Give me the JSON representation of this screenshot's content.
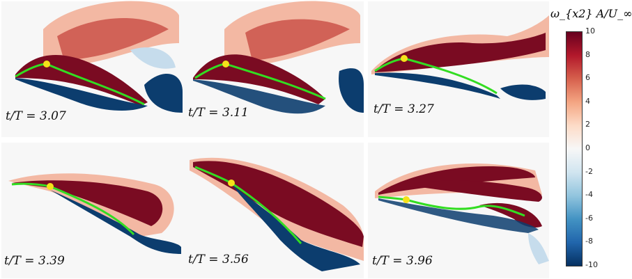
{
  "panels": [
    {
      "label": "t/T = 3.07"
    },
    {
      "label": "t/T = 3.11"
    },
    {
      "label": "t/T = 3.27"
    },
    {
      "label": "t/T = 3.39"
    },
    {
      "label": "t/T = 3.56"
    },
    {
      "label": "t/T = 3.96"
    }
  ],
  "colorbar": {
    "title": "ω_{x2} A/U_∞",
    "ticks": [
      "10",
      "8",
      "6",
      "4",
      "2",
      "0",
      "-2",
      "-4",
      "-6",
      "-8",
      "-10"
    ],
    "colors": [
      "#67001f",
      "#b2182b",
      "#d6604d",
      "#f4a582",
      "#fddbc7",
      "#f7f7f7",
      "#d1e5f0",
      "#92c5de",
      "#4393c3",
      "#2166ac",
      "#053061"
    ]
  },
  "colors": {
    "pos_strong": "#7a0b22",
    "pos_mid": "#c84c44",
    "pos_light": "#f3b8a3",
    "neg_strong": "#0c3d6e",
    "neg_mid": "#4a8ec4",
    "neg_light": "#c6dcec",
    "fiber": "#33dd22",
    "marker": "#f5e11a"
  }
}
